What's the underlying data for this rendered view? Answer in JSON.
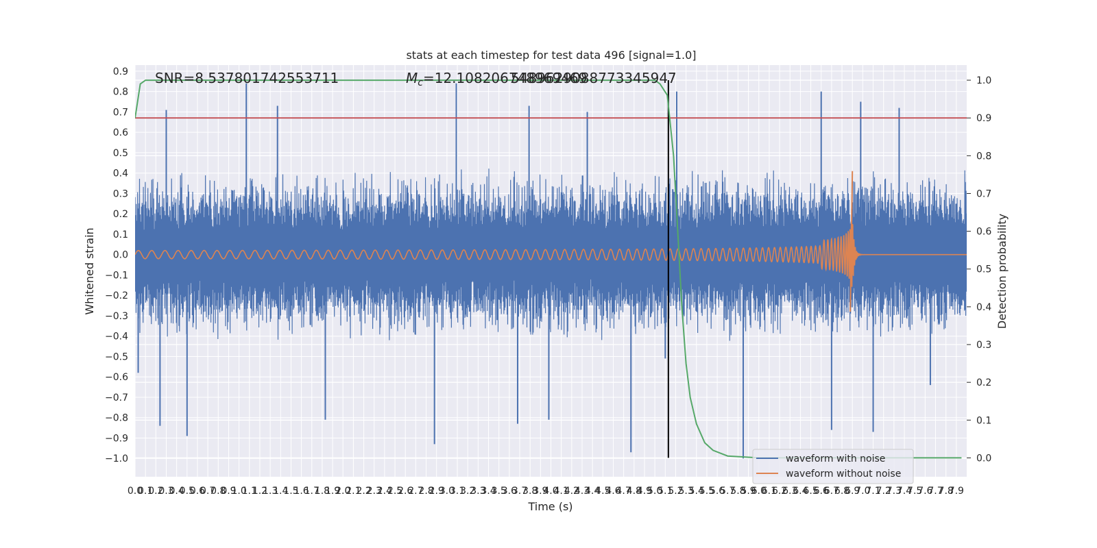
{
  "chart_data": {
    "type": "line",
    "title": "stats at each timestep for test data 496 [signal=1.0]",
    "xlabel": "Time (s)",
    "ylabel": "Whitened strain",
    "y2label": "Detection probability",
    "xlim": [
      0,
      8
    ],
    "ylim": [
      -1.09,
      0.93
    ],
    "y2lim": [
      -0.05,
      1.04
    ],
    "x_ticks": [
      "0.0",
      "0.1",
      "0.2",
      "0.3",
      "0.4",
      "0.5",
      "0.6",
      "0.7",
      "0.8",
      "0.9",
      "1.0",
      "1.1",
      "1.2",
      "1.3",
      "1.4",
      "1.5",
      "1.6",
      "1.7",
      "1.8",
      "1.9",
      "2.0",
      "2.1",
      "2.2",
      "2.3",
      "2.4",
      "2.5",
      "2.6",
      "2.7",
      "2.8",
      "2.9",
      "3.0",
      "3.1",
      "3.2",
      "3.3",
      "3.4",
      "3.5",
      "3.6",
      "3.7",
      "3.8",
      "3.9",
      "4.0",
      "4.1",
      "4.2",
      "4.3",
      "4.4",
      "4.5",
      "4.6",
      "4.7",
      "4.8",
      "4.9",
      "5.0",
      "5.1",
      "5.2",
      "5.3",
      "5.4",
      "5.5",
      "5.6",
      "5.7",
      "5.8",
      "5.9",
      "6.0",
      "6.1",
      "6.2",
      "6.3",
      "6.4",
      "6.5",
      "6.6",
      "6.7",
      "6.8",
      "6.9",
      "7.0",
      "7.1",
      "7.2",
      "7.3",
      "7.4",
      "7.5",
      "7.6",
      "7.7",
      "7.8",
      "7.9"
    ],
    "y_ticks": [
      "0.9",
      "0.8",
      "0.7",
      "0.6",
      "0.5",
      "0.4",
      "0.3",
      "0.2",
      "0.1",
      "0.0",
      "−0.1",
      "−0.2",
      "−0.3",
      "−0.4",
      "−0.5",
      "−0.6",
      "−0.7",
      "−0.8",
      "−0.9",
      "−1.0"
    ],
    "y2_ticks": [
      "1.0",
      "0.9",
      "0.8",
      "0.7",
      "0.6",
      "0.5",
      "0.4",
      "0.3",
      "0.2",
      "0.1",
      "0.0"
    ],
    "annotations": {
      "snr": "SNR=8.537801742553711",
      "mc_symbol": "M",
      "mc_sub": "c",
      "mc_value": "=12.108206748969469",
      "mc_overlap": "5489629088773345947"
    },
    "threshold": 0.9,
    "event_time": 5.13,
    "series": [
      {
        "name": "waveform with noise",
        "color": "#4c72b0",
        "kind": "noise",
        "envelope": 0.43,
        "spikes": [
          [
            0.03,
            -0.58
          ],
          [
            0.24,
            -0.84
          ],
          [
            0.3,
            0.71
          ],
          [
            0.5,
            -0.89
          ],
          [
            1.07,
            0.84
          ],
          [
            1.37,
            0.73
          ],
          [
            1.83,
            -0.81
          ],
          [
            2.48,
            -0.18
          ],
          [
            2.88,
            -0.93
          ],
          [
            3.09,
            0.84
          ],
          [
            3.68,
            -0.83
          ],
          [
            3.79,
            0.73
          ],
          [
            3.98,
            -0.81
          ],
          [
            4.35,
            0.7
          ],
          [
            4.77,
            -0.97
          ],
          [
            5.1,
            -0.51
          ],
          [
            5.21,
            0.8
          ],
          [
            5.85,
            -1.0
          ],
          [
            6.6,
            0.8
          ],
          [
            6.7,
            -0.86
          ],
          [
            6.98,
            0.75
          ],
          [
            7.1,
            -0.87
          ],
          [
            7.35,
            0.72
          ],
          [
            7.65,
            -0.64
          ]
        ]
      },
      {
        "name": "waveform without noise",
        "color": "#dd8452",
        "kind": "chirp",
        "t_merger": 6.9,
        "amp_start": 0.02,
        "amp_peak": 0.41,
        "amp_trough": -0.28
      },
      {
        "name": "detection probability",
        "color": "#55a868",
        "axis": "right",
        "points": [
          [
            0,
            0.9
          ],
          [
            0.05,
            0.99
          ],
          [
            0.1,
            1.0
          ],
          [
            2.0,
            1.0
          ],
          [
            4.0,
            1.0
          ],
          [
            5.0,
            1.0
          ],
          [
            5.05,
            0.99
          ],
          [
            5.12,
            0.96
          ],
          [
            5.18,
            0.8
          ],
          [
            5.22,
            0.6
          ],
          [
            5.26,
            0.4
          ],
          [
            5.3,
            0.25
          ],
          [
            5.34,
            0.16
          ],
          [
            5.4,
            0.09
          ],
          [
            5.48,
            0.04
          ],
          [
            5.56,
            0.02
          ],
          [
            5.7,
            0.005
          ],
          [
            6.0,
            0.0
          ],
          [
            7.95,
            0.0
          ]
        ]
      }
    ],
    "threshold_color": "#c44e52",
    "event_line_color": "#000000",
    "legend": {
      "position": "lower-right",
      "entries": [
        {
          "label": "waveform with noise",
          "color": "#4c72b0"
        },
        {
          "label": "waveform without noise",
          "color": "#dd8452"
        }
      ]
    },
    "grid": true,
    "background": "#eaeaf2"
  }
}
